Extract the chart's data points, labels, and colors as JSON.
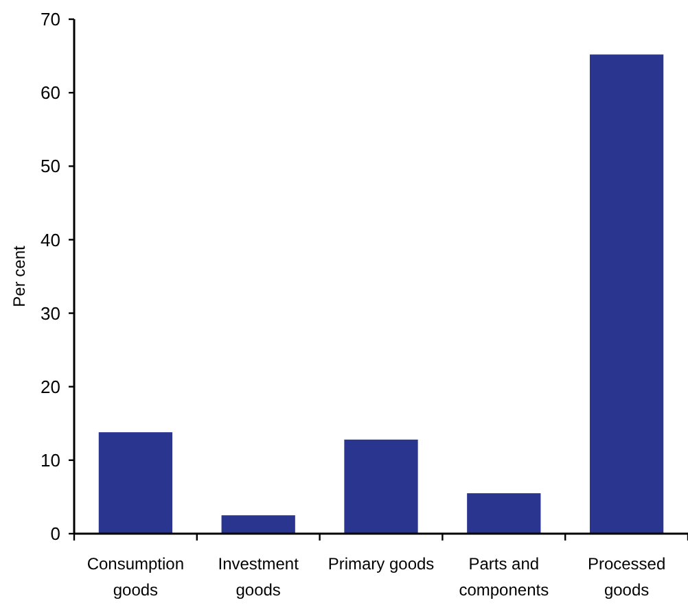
{
  "chart_data": {
    "type": "bar",
    "ylabel": "Per cent",
    "categories": [
      "Consumption goods",
      "Investment goods",
      "Primary goods",
      "Parts and components",
      "Processed goods"
    ],
    "values": [
      13.8,
      2.5,
      12.8,
      5.5,
      65.2
    ],
    "color": "#2a3590",
    "ylim": [
      0,
      70
    ],
    "yticks": [
      0,
      10,
      20,
      30,
      40,
      50,
      60,
      70
    ],
    "grid": false
  }
}
